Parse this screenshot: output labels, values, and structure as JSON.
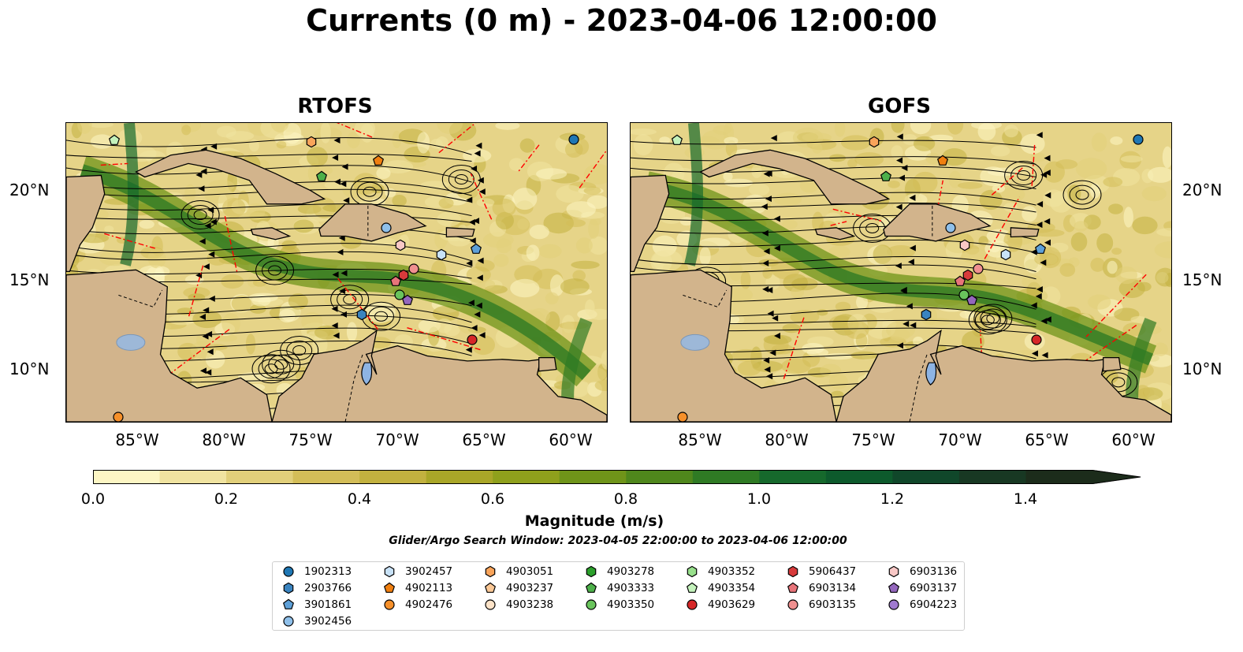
{
  "title": "Currents (0 m) - 2023-04-06 12:00:00",
  "panels": [
    {
      "title": "RTOFS"
    },
    {
      "title": "GOFS"
    }
  ],
  "lat_ticks": [
    "20°N",
    "15°N",
    "10°N"
  ],
  "lon_ticks": [
    "85°W",
    "80°W",
    "75°W",
    "70°W",
    "65°W",
    "60°W"
  ],
  "colorbar": {
    "label": "Magnitude (m/s)",
    "ticks": [
      "0.0",
      "0.2",
      "0.4",
      "0.6",
      "0.8",
      "1.0",
      "1.2",
      "1.4"
    ],
    "colors": [
      "#fdf6c4",
      "#f0e3a0",
      "#e1cf7a",
      "#d3bd58",
      "#c2b13f",
      "#a9a628",
      "#8fa01c",
      "#6f9419",
      "#4f871c",
      "#2f7a24",
      "#16692c",
      "#0d5a2c",
      "#10472a",
      "#183823",
      "#1c2c1b"
    ],
    "extend": "max"
  },
  "search_window": "Glider/Argo Search Window: 2023-04-05 22:00:00 to 2023-04-06 12:00:00",
  "legend": [
    {
      "id": "1902313",
      "marker": "circle",
      "color": "#1f77b4"
    },
    {
      "id": "2903766",
      "marker": "hexagon",
      "color": "#3a84c0"
    },
    {
      "id": "3901861",
      "marker": "pentagon",
      "color": "#5ea0d8"
    },
    {
      "id": "3902456",
      "marker": "circle",
      "color": "#8fc0ea"
    },
    {
      "id": "3902457",
      "marker": "hexagon",
      "color": "#c8e2f7"
    },
    {
      "id": "4902113",
      "marker": "pentagon",
      "color": "#f07f10"
    },
    {
      "id": "4902476",
      "marker": "circle",
      "color": "#f6902a"
    },
    {
      "id": "4903051",
      "marker": "hexagon",
      "color": "#f9a45a"
    },
    {
      "id": "4903237",
      "marker": "pentagon",
      "color": "#fbc896"
    },
    {
      "id": "4903238",
      "marker": "circle",
      "color": "#fde3c8"
    },
    {
      "id": "4903278",
      "marker": "hexagon",
      "color": "#2ca02c"
    },
    {
      "id": "4903333",
      "marker": "pentagon",
      "color": "#4db04a"
    },
    {
      "id": "4903350",
      "marker": "circle",
      "color": "#69c45c"
    },
    {
      "id": "4903352",
      "marker": "hexagon",
      "color": "#98e08c"
    },
    {
      "id": "4903354",
      "marker": "pentagon",
      "color": "#c4f2bc"
    },
    {
      "id": "4903629",
      "marker": "circle",
      "color": "#d62728"
    },
    {
      "id": "5906437",
      "marker": "hexagon",
      "color": "#d73a3b"
    },
    {
      "id": "6903134",
      "marker": "pentagon",
      "color": "#e8747a"
    },
    {
      "id": "6903135",
      "marker": "circle",
      "color": "#f09090"
    },
    {
      "id": "6903136",
      "marker": "hexagon",
      "color": "#f9c8c6"
    },
    {
      "id": "6903137",
      "marker": "pentagon",
      "color": "#9467bd"
    },
    {
      "id": "6904223",
      "marker": "circle",
      "color": "#a07ad0"
    }
  ]
}
